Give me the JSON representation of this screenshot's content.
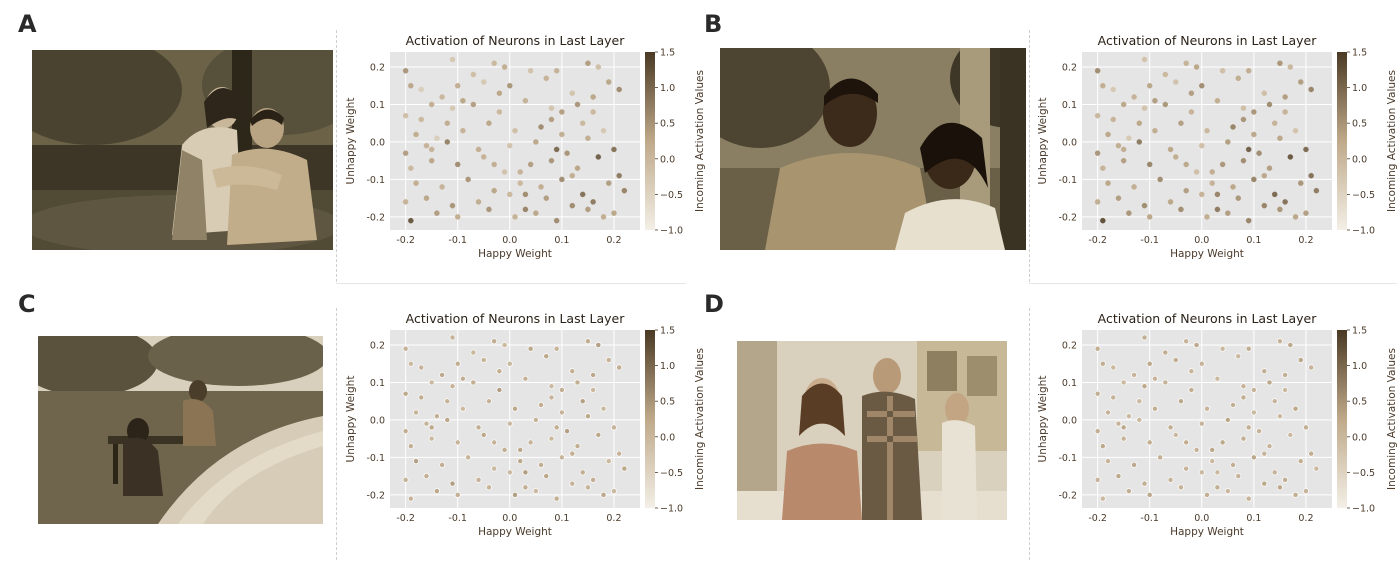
{
  "panels": [
    {
      "letter": "A",
      "scene": "couple-embrace-park",
      "marker_style": "filled"
    },
    {
      "letter": "B",
      "scene": "couple-smiling-park",
      "marker_style": "filled"
    },
    {
      "letter": "C",
      "scene": "sad-person-bench-path",
      "marker_style": "hollow"
    },
    {
      "letter": "D",
      "scene": "street-three-people",
      "marker_style": "hollow"
    }
  ],
  "colors": {
    "plot_bg": "#e5e5e5",
    "grid": "#ffffff",
    "text": "#4a3a2a",
    "cmap_low": "#f3efe6",
    "cmap_mid": "#bfa98a",
    "cmap_high": "#4a3a24"
  },
  "chart_template": {
    "type": "scatter",
    "title": "Activation of Neurons in Last Layer",
    "xlabel": "Happy Weight",
    "ylabel": "Unhappy Weight",
    "xlim": [
      -0.23,
      0.25
    ],
    "ylim": [
      -0.235,
      0.24
    ],
    "xticks": [
      -0.2,
      -0.1,
      0.0,
      0.1,
      0.2
    ],
    "xtick_labels": [
      "-0.2",
      "-0.1",
      "0.0",
      "0.1",
      "0.2"
    ],
    "yticks": [
      -0.2,
      -0.1,
      0.0,
      0.1,
      0.2
    ],
    "ytick_labels": [
      "-0.2",
      "-0.1",
      "0.0",
      "0.1",
      "0.2"
    ],
    "grid": true,
    "colorbar": {
      "label": "Incoming Activation Values",
      "range": [
        -1.0,
        1.5
      ],
      "ticks": [
        -1.0,
        -0.5,
        0.0,
        0.5,
        1.0,
        1.5
      ],
      "tick_labels": [
        "−1.0",
        "−0.5",
        "0.0",
        "0.5",
        "1.0",
        "1.5"
      ]
    }
  },
  "chart_data": [
    {
      "panel": "A",
      "type": "scatter",
      "title": "Activation of Neurons in Last Layer",
      "xlabel": "Happy Weight",
      "ylabel": "Unhappy Weight",
      "xlim": [
        -0.23,
        0.25
      ],
      "ylim": [
        -0.235,
        0.24
      ],
      "color_range": [
        -1.0,
        1.5
      ],
      "x": [
        -0.11,
        -0.03,
        -0.01,
        0.04,
        0.09,
        0.15,
        0.17,
        -0.19,
        -0.17,
        -0.13,
        -0.1,
        -0.05,
        0.0,
        0.07,
        0.12,
        0.19,
        0.21,
        -0.2,
        -0.15,
        -0.11,
        -0.07,
        -0.02,
        0.03,
        0.08,
        0.13,
        0.16,
        -0.18,
        -0.14,
        -0.09,
        -0.04,
        0.01,
        0.06,
        0.1,
        0.14,
        0.18,
        -0.2,
        -0.16,
        -0.12,
        -0.06,
        0.0,
        0.05,
        0.09,
        0.11,
        0.15,
        0.2,
        -0.19,
        -0.15,
        -0.1,
        -0.05,
        -0.01,
        0.04,
        0.08,
        0.13,
        0.17,
        0.21,
        -0.18,
        -0.13,
        -0.08,
        -0.03,
        0.02,
        0.06,
        0.1,
        0.14,
        0.19,
        0.22,
        -0.2,
        -0.16,
        -0.11,
        -0.06,
        0.0,
        0.03,
        0.07,
        0.12,
        0.16,
        0.2,
        -0.19,
        -0.14,
        -0.1,
        -0.04,
        0.01,
        0.05,
        0.09,
        0.15,
        0.18,
        -0.17,
        -0.12,
        -0.07,
        -0.02,
        0.02,
        0.08,
        0.12,
        0.16,
        -0.2,
        -0.15,
        -0.09,
        -0.03,
        0.03,
        0.1
      ],
      "y": [
        0.22,
        0.21,
        0.2,
        0.19,
        0.19,
        0.21,
        0.2,
        0.15,
        0.14,
        0.12,
        0.15,
        0.16,
        0.15,
        0.17,
        0.13,
        0.16,
        0.14,
        0.07,
        0.1,
        0.09,
        0.1,
        0.08,
        0.11,
        0.09,
        0.1,
        0.12,
        0.02,
        0.01,
        0.03,
        0.05,
        0.03,
        0.04,
        0.02,
        0.05,
        0.03,
        -0.03,
        -0.01,
        0.0,
        -0.02,
        -0.01,
        0.0,
        -0.02,
        -0.03,
        0.01,
        -0.02,
        -0.07,
        -0.05,
        -0.06,
        -0.04,
        -0.08,
        -0.06,
        -0.05,
        -0.07,
        -0.04,
        -0.09,
        -0.11,
        -0.12,
        -0.1,
        -0.13,
        -0.11,
        -0.12,
        -0.1,
        -0.14,
        -0.11,
        -0.13,
        -0.16,
        -0.15,
        -0.17,
        -0.16,
        -0.14,
        -0.18,
        -0.15,
        -0.17,
        -0.16,
        -0.19,
        -0.21,
        -0.19,
        -0.2,
        -0.18,
        -0.2,
        -0.19,
        -0.21,
        -0.18,
        -0.2,
        0.06,
        0.05,
        0.18,
        0.13,
        -0.08,
        0.06,
        -0.09,
        0.08,
        0.19,
        -0.02,
        0.11,
        -0.06,
        -0.14,
        0.08
      ],
      "c": [
        -0.3,
        0.0,
        0.2,
        -0.2,
        0.1,
        0.4,
        -0.1,
        0.3,
        -0.4,
        0.0,
        0.2,
        -0.3,
        0.5,
        0.1,
        -0.2,
        0.3,
        0.6,
        -0.1,
        0.2,
        -0.3,
        0.4,
        0.0,
        0.1,
        -0.2,
        0.5,
        0.3,
        0.2,
        -0.4,
        0.1,
        0.3,
        -0.1,
        0.6,
        0.2,
        0.0,
        -0.3,
        0.4,
        0.1,
        0.7,
        0.2,
        -0.2,
        0.3,
        1.0,
        0.5,
        0.2,
        0.9,
        0.0,
        0.3,
        0.6,
        0.1,
        -0.2,
        0.4,
        0.5,
        0.3,
        1.1,
        0.8,
        0.2,
        0.1,
        0.5,
        0.3,
        0.0,
        0.2,
        0.6,
        0.9,
        0.4,
        0.7,
        0.1,
        0.3,
        0.5,
        0.2,
        0.0,
        0.7,
        0.4,
        0.6,
        0.8,
        0.3,
        1.2,
        0.4,
        0.2,
        0.5,
        0.1,
        0.3,
        0.6,
        0.4,
        0.2,
        0.0,
        0.2,
        -0.1,
        0.3,
        0.1,
        0.4,
        0.2,
        0.0,
        0.5,
        0.1,
        0.3,
        0.2,
        0.6,
        0.4
      ]
    },
    {
      "panel": "B",
      "type": "scatter",
      "title": "Activation of Neurons in Last Layer",
      "xlabel": "Happy Weight",
      "ylabel": "Unhappy Weight",
      "xlim": [
        -0.23,
        0.25
      ],
      "ylim": [
        -0.235,
        0.24
      ],
      "color_range": [
        -1.0,
        1.5
      ],
      "x": [
        -0.11,
        -0.03,
        -0.01,
        0.04,
        0.09,
        0.15,
        0.17,
        -0.19,
        -0.17,
        -0.13,
        -0.1,
        -0.05,
        0.0,
        0.07,
        0.12,
        0.19,
        0.21,
        -0.2,
        -0.15,
        -0.11,
        -0.07,
        -0.02,
        0.03,
        0.08,
        0.13,
        0.16,
        -0.18,
        -0.14,
        -0.09,
        -0.04,
        0.01,
        0.06,
        0.1,
        0.14,
        0.18,
        -0.2,
        -0.16,
        -0.12,
        -0.06,
        0.0,
        0.05,
        0.09,
        0.11,
        0.15,
        0.2,
        -0.19,
        -0.15,
        -0.1,
        -0.05,
        -0.01,
        0.04,
        0.08,
        0.13,
        0.17,
        0.21,
        -0.18,
        -0.13,
        -0.08,
        -0.03,
        0.02,
        0.06,
        0.1,
        0.14,
        0.19,
        0.22,
        -0.2,
        -0.16,
        -0.11,
        -0.06,
        0.0,
        0.03,
        0.07,
        0.12,
        0.16,
        0.2,
        -0.19,
        -0.14,
        -0.1,
        -0.04,
        0.01,
        0.05,
        0.09,
        0.15,
        0.18,
        -0.17,
        -0.12,
        -0.07,
        -0.02,
        0.02,
        0.08,
        0.12,
        0.16,
        -0.2,
        -0.15,
        -0.09,
        -0.03,
        0.03,
        0.1
      ],
      "y": [
        0.22,
        0.21,
        0.2,
        0.19,
        0.19,
        0.21,
        0.2,
        0.15,
        0.14,
        0.12,
        0.15,
        0.16,
        0.15,
        0.17,
        0.13,
        0.16,
        0.14,
        0.07,
        0.1,
        0.09,
        0.1,
        0.08,
        0.11,
        0.09,
        0.1,
        0.12,
        0.02,
        0.01,
        0.03,
        0.05,
        0.03,
        0.04,
        0.02,
        0.05,
        0.03,
        -0.03,
        -0.01,
        0.0,
        -0.02,
        -0.01,
        0.0,
        -0.02,
        -0.03,
        0.01,
        -0.02,
        -0.07,
        -0.05,
        -0.06,
        -0.04,
        -0.08,
        -0.06,
        -0.05,
        -0.07,
        -0.04,
        -0.09,
        -0.11,
        -0.12,
        -0.1,
        -0.13,
        -0.11,
        -0.12,
        -0.1,
        -0.14,
        -0.11,
        -0.13,
        -0.16,
        -0.15,
        -0.17,
        -0.16,
        -0.14,
        -0.18,
        -0.15,
        -0.17,
        -0.16,
        -0.19,
        -0.21,
        -0.19,
        -0.2,
        -0.18,
        -0.2,
        -0.19,
        -0.21,
        -0.18,
        -0.2,
        0.06,
        0.05,
        0.18,
        0.13,
        -0.08,
        0.06,
        -0.09,
        0.08,
        0.19,
        -0.02,
        0.11,
        -0.06,
        -0.14,
        0.08
      ],
      "c": [
        -0.2,
        0.1,
        0.3,
        -0.1,
        0.2,
        0.5,
        0.0,
        0.2,
        -0.3,
        0.1,
        0.3,
        -0.2,
        0.6,
        0.2,
        -0.1,
        0.4,
        0.7,
        0.0,
        0.3,
        -0.2,
        0.5,
        0.1,
        0.2,
        -0.1,
        0.6,
        0.4,
        0.3,
        -0.3,
        0.2,
        0.4,
        0.0,
        0.7,
        0.3,
        0.1,
        -0.2,
        0.5,
        0.2,
        0.8,
        0.3,
        -0.1,
        0.4,
        1.1,
        0.6,
        0.3,
        1.0,
        0.1,
        0.4,
        0.7,
        0.2,
        -0.1,
        0.5,
        0.6,
        0.4,
        1.2,
        0.9,
        0.3,
        0.2,
        0.6,
        0.4,
        0.1,
        0.3,
        0.7,
        1.0,
        0.5,
        0.8,
        0.2,
        0.4,
        0.6,
        0.3,
        0.1,
        0.8,
        0.5,
        0.7,
        0.9,
        0.4,
        1.3,
        0.5,
        0.3,
        0.6,
        0.2,
        0.4,
        0.7,
        0.5,
        0.3,
        0.1,
        0.3,
        0.0,
        0.4,
        0.2,
        0.5,
        0.3,
        0.1,
        0.6,
        0.2,
        0.4,
        0.3,
        0.7,
        0.5
      ]
    },
    {
      "panel": "C",
      "type": "scatter",
      "title": "Activation of Neurons in Last Layer",
      "xlabel": "Happy Weight",
      "ylabel": "Unhappy Weight",
      "xlim": [
        -0.23,
        0.25
      ],
      "ylim": [
        -0.235,
        0.24
      ],
      "color_range": [
        -1.0,
        1.5
      ],
      "x": [
        -0.11,
        -0.03,
        -0.01,
        0.04,
        0.09,
        0.15,
        0.17,
        -0.19,
        -0.17,
        -0.13,
        -0.1,
        -0.05,
        0.0,
        0.07,
        0.12,
        0.19,
        0.21,
        -0.2,
        -0.15,
        -0.11,
        -0.07,
        -0.02,
        0.03,
        0.08,
        0.13,
        0.16,
        -0.18,
        -0.14,
        -0.09,
        -0.04,
        0.01,
        0.06,
        0.1,
        0.14,
        0.18,
        -0.2,
        -0.16,
        -0.12,
        -0.06,
        0.0,
        0.05,
        0.09,
        0.11,
        0.15,
        0.2,
        -0.19,
        -0.15,
        -0.1,
        -0.05,
        -0.01,
        0.04,
        0.08,
        0.13,
        0.17,
        0.21,
        -0.18,
        -0.13,
        -0.08,
        -0.03,
        0.02,
        0.06,
        0.1,
        0.14,
        0.19,
        0.22,
        -0.2,
        -0.16,
        -0.11,
        -0.06,
        0.0,
        0.03,
        0.07,
        0.12,
        0.16,
        0.2,
        -0.19,
        -0.14,
        -0.1,
        -0.04,
        0.01,
        0.05,
        0.09,
        0.15,
        0.18,
        -0.17,
        -0.12,
        -0.07,
        -0.02,
        0.02,
        0.08,
        0.12,
        0.16,
        -0.2,
        -0.15,
        -0.09,
        -0.03,
        0.03,
        0.1
      ],
      "y": [
        0.22,
        0.21,
        0.2,
        0.19,
        0.19,
        0.21,
        0.2,
        0.15,
        0.14,
        0.12,
        0.15,
        0.16,
        0.15,
        0.17,
        0.13,
        0.16,
        0.14,
        0.07,
        0.1,
        0.09,
        0.1,
        0.08,
        0.11,
        0.09,
        0.1,
        0.12,
        0.02,
        0.01,
        0.03,
        0.05,
        0.03,
        0.04,
        0.02,
        0.05,
        0.03,
        -0.03,
        -0.01,
        0.0,
        -0.02,
        -0.01,
        0.0,
        -0.02,
        -0.03,
        0.01,
        -0.02,
        -0.07,
        -0.05,
        -0.06,
        -0.04,
        -0.08,
        -0.06,
        -0.05,
        -0.07,
        -0.04,
        -0.09,
        -0.11,
        -0.12,
        -0.1,
        -0.13,
        -0.11,
        -0.12,
        -0.1,
        -0.14,
        -0.11,
        -0.13,
        -0.16,
        -0.15,
        -0.17,
        -0.16,
        -0.14,
        -0.18,
        -0.15,
        -0.17,
        -0.16,
        -0.19,
        -0.21,
        -0.19,
        -0.2,
        -0.18,
        -0.2,
        -0.19,
        -0.21,
        -0.18,
        -0.2,
        0.06,
        0.05,
        0.18,
        0.13,
        -0.08,
        0.06,
        -0.09,
        0.08,
        0.19,
        -0.02,
        0.11,
        -0.06,
        -0.14,
        0.08
      ],
      "c": [
        0.1,
        0.2,
        0.0,
        0.3,
        0.1,
        0.2,
        0.4,
        0.0,
        0.1,
        0.3,
        0.2,
        0.1,
        0.0,
        0.3,
        0.2,
        0.1,
        0.2,
        0.3,
        0.0,
        0.1,
        0.2,
        0.4,
        0.1,
        0.0,
        0.2,
        0.3,
        0.1,
        0.2,
        0.0,
        0.1,
        0.3,
        0.2,
        0.1,
        0.4,
        0.0,
        0.2,
        0.1,
        0.3,
        0.2,
        0.0,
        0.1,
        0.2,
        0.4,
        0.3,
        0.1,
        0.2,
        0.0,
        0.1,
        0.3,
        0.2,
        0.1,
        0.0,
        0.2,
        0.3,
        0.1,
        0.4,
        0.2,
        0.1,
        0.0,
        0.3,
        0.2,
        0.1,
        0.2,
        0.0,
        0.3,
        0.1,
        0.2,
        0.4,
        0.1,
        0.0,
        0.2,
        0.3,
        0.1,
        0.2,
        0.0,
        0.1,
        0.3,
        0.2,
        0.1,
        0.4,
        0.0,
        0.2,
        0.1,
        0.3,
        0.2,
        0.1,
        0.0,
        0.2,
        0.3,
        0.1,
        0.2,
        0.0,
        0.1,
        0.3,
        0.2,
        0.1,
        0.4,
        0.2
      ]
    },
    {
      "panel": "D",
      "type": "scatter",
      "title": "Activation of Neurons in Last Layer",
      "xlabel": "Happy Weight",
      "ylabel": "Unhappy Weight",
      "xlim": [
        -0.23,
        0.25
      ],
      "ylim": [
        -0.235,
        0.24
      ],
      "color_range": [
        -1.0,
        1.5
      ],
      "x": [
        -0.11,
        -0.03,
        -0.01,
        0.04,
        0.09,
        0.15,
        0.17,
        -0.19,
        -0.17,
        -0.13,
        -0.1,
        -0.05,
        0.0,
        0.07,
        0.12,
        0.19,
        0.21,
        -0.2,
        -0.15,
        -0.11,
        -0.07,
        -0.02,
        0.03,
        0.08,
        0.13,
        0.16,
        -0.18,
        -0.14,
        -0.09,
        -0.04,
        0.01,
        0.06,
        0.1,
        0.14,
        0.18,
        -0.2,
        -0.16,
        -0.12,
        -0.06,
        0.0,
        0.05,
        0.09,
        0.11,
        0.15,
        0.2,
        -0.19,
        -0.15,
        -0.1,
        -0.05,
        -0.01,
        0.04,
        0.08,
        0.13,
        0.17,
        0.21,
        -0.18,
        -0.13,
        -0.08,
        -0.03,
        0.02,
        0.06,
        0.1,
        0.14,
        0.19,
        0.22,
        -0.2,
        -0.16,
        -0.11,
        -0.06,
        0.0,
        0.03,
        0.07,
        0.12,
        0.16,
        0.2,
        -0.19,
        -0.14,
        -0.1,
        -0.04,
        0.01,
        0.05,
        0.09,
        0.15,
        0.18,
        -0.17,
        -0.12,
        -0.07,
        -0.02,
        0.02,
        0.08,
        0.12,
        0.16,
        -0.2,
        -0.15,
        -0.09,
        -0.03,
        0.03,
        0.1
      ],
      "y": [
        0.22,
        0.21,
        0.2,
        0.19,
        0.19,
        0.21,
        0.2,
        0.15,
        0.14,
        0.12,
        0.15,
        0.16,
        0.15,
        0.17,
        0.13,
        0.16,
        0.14,
        0.07,
        0.1,
        0.09,
        0.1,
        0.08,
        0.11,
        0.09,
        0.1,
        0.12,
        0.02,
        0.01,
        0.03,
        0.05,
        0.03,
        0.04,
        0.02,
        0.05,
        0.03,
        -0.03,
        -0.01,
        0.0,
        -0.02,
        -0.01,
        0.0,
        -0.02,
        -0.03,
        0.01,
        -0.02,
        -0.07,
        -0.05,
        -0.06,
        -0.04,
        -0.08,
        -0.06,
        -0.05,
        -0.07,
        -0.04,
        -0.09,
        -0.11,
        -0.12,
        -0.1,
        -0.13,
        -0.11,
        -0.12,
        -0.1,
        -0.14,
        -0.11,
        -0.13,
        -0.16,
        -0.15,
        -0.17,
        -0.16,
        -0.14,
        -0.18,
        -0.15,
        -0.17,
        -0.16,
        -0.19,
        -0.21,
        -0.19,
        -0.2,
        -0.18,
        -0.2,
        -0.19,
        -0.21,
        -0.18,
        -0.2,
        0.06,
        0.05,
        0.18,
        0.13,
        -0.08,
        0.06,
        -0.09,
        0.08,
        0.19,
        -0.02,
        0.11,
        -0.06,
        -0.14,
        0.08
      ],
      "c": [
        0.2,
        0.1,
        0.3,
        0.0,
        0.2,
        0.1,
        0.3,
        0.2,
        0.0,
        0.1,
        0.3,
        0.2,
        0.1,
        0.0,
        0.2,
        0.3,
        0.1,
        0.2,
        0.0,
        0.3,
        0.1,
        0.2,
        0.0,
        0.1,
        0.3,
        0.2,
        0.1,
        0.0,
        0.2,
        0.3,
        0.1,
        0.2,
        0.0,
        0.1,
        0.3,
        0.2,
        0.1,
        0.0,
        0.2,
        0.1,
        0.3,
        0.2,
        0.1,
        0.0,
        0.2,
        0.3,
        0.1,
        0.2,
        0.0,
        0.1,
        0.3,
        0.2,
        0.1,
        0.0,
        0.2,
        0.1,
        0.3,
        0.2,
        0.1,
        0.0,
        0.2,
        0.3,
        0.1,
        0.2,
        0.0,
        0.1,
        0.3,
        0.2,
        0.1,
        0.0,
        0.2,
        0.1,
        0.3,
        0.2,
        0.1,
        0.0,
        0.2,
        0.3,
        0.1,
        0.2,
        0.0,
        0.1,
        0.3,
        0.2,
        0.1,
        0.0,
        0.2,
        0.1,
        0.3,
        0.2,
        0.1,
        0.0,
        0.2,
        0.3,
        0.1,
        0.2,
        0.0,
        0.1
      ]
    }
  ]
}
